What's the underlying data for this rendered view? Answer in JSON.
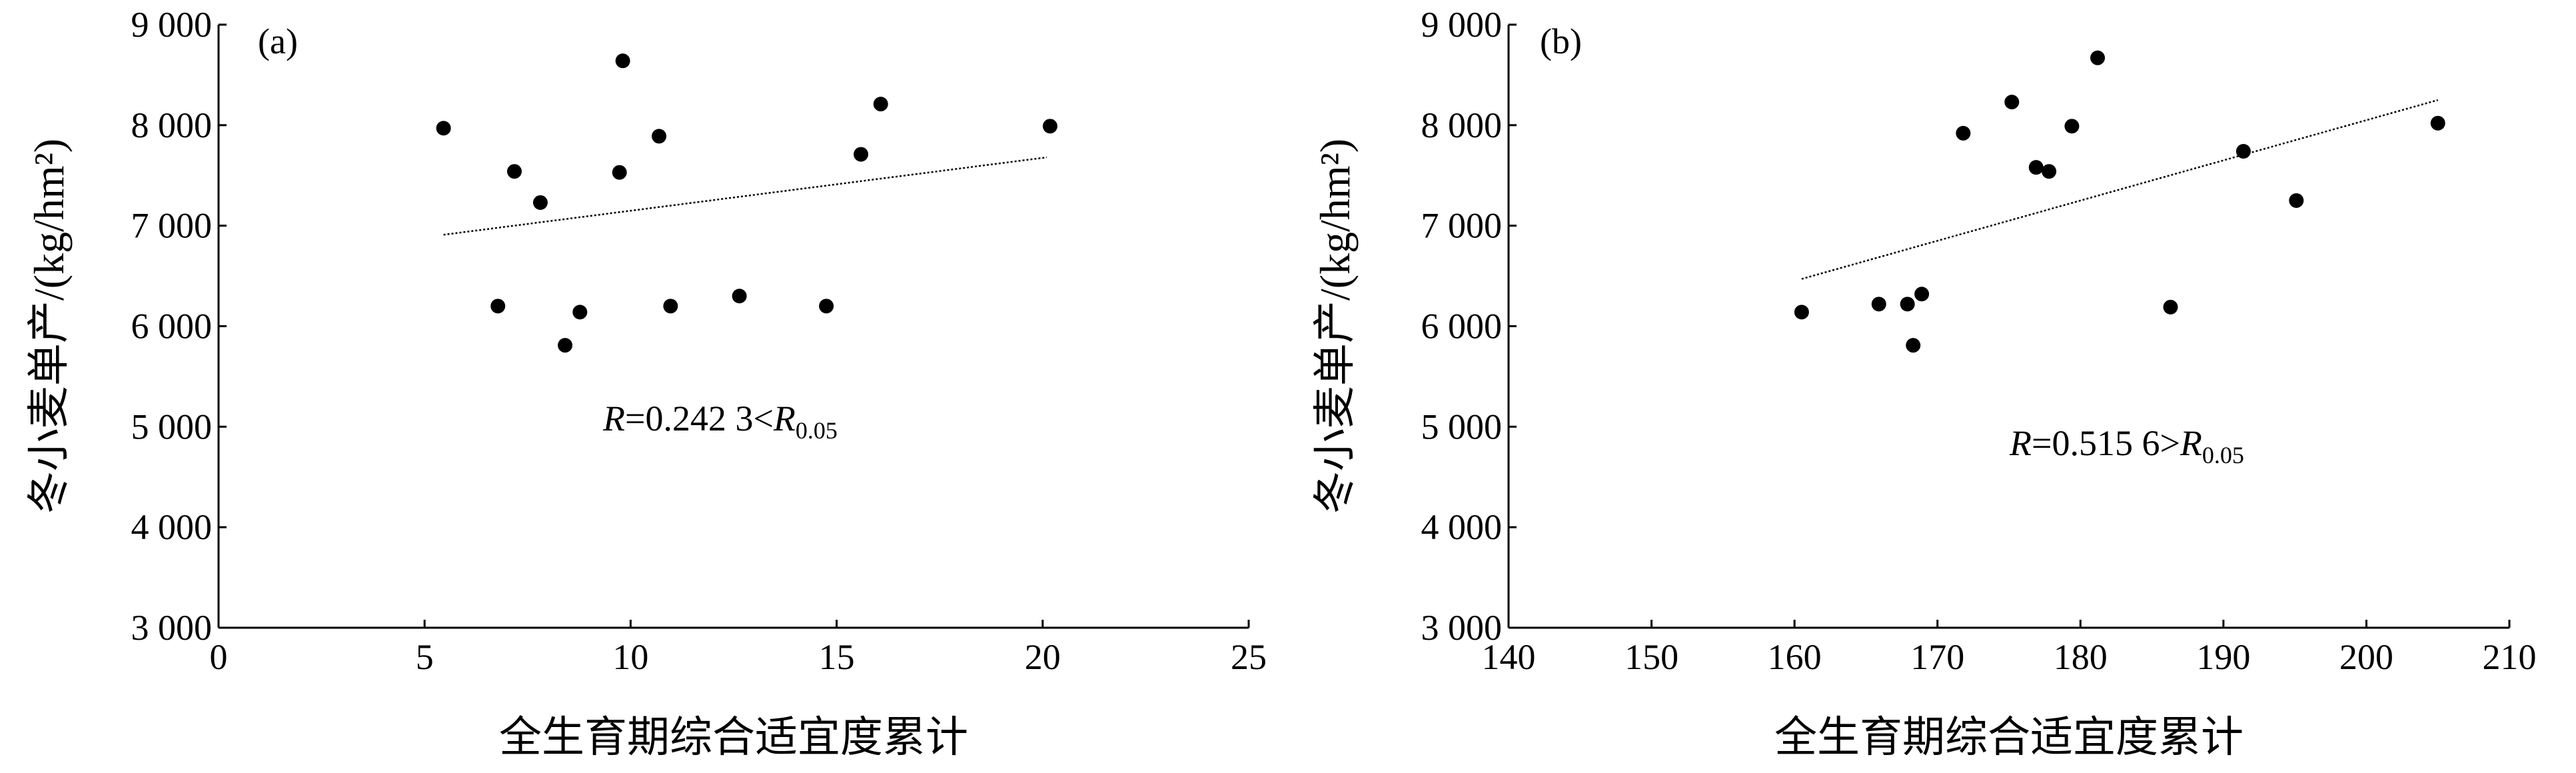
{
  "chart_data": [
    {
      "type": "scatter",
      "panel_label": "(a)",
      "x_label": "全生育期综合适宜度累计",
      "y_label": "冬小麦单产/(kg/hm²)",
      "annotation": [
        "R",
        "=0.242 3<",
        "R",
        "0.05"
      ],
      "x": [
        5.46,
        6.78,
        7.18,
        7.81,
        8.41,
        8.77,
        9.73,
        9.81,
        10.69,
        10.97,
        12.64,
        14.75,
        15.59,
        16.07,
        20.18
      ],
      "values": [
        7970,
        6200,
        7540,
        7230,
        5810,
        6140,
        7530,
        8640,
        7890,
        6200,
        6300,
        6200,
        7710,
        8210,
        7990
      ],
      "color": "#000000",
      "trendline": {
        "x": [
          5.46,
          20.1
        ],
        "y": [
          6910,
          7680
        ]
      },
      "xlim": [
        0,
        25
      ],
      "xticks": [
        0,
        5,
        10,
        15,
        20,
        25
      ],
      "ylim": [
        3000,
        9000
      ],
      "yticks": [
        {
          "value": 3000,
          "label": "3 000"
        },
        {
          "value": 4000,
          "label": "4 000"
        },
        {
          "value": 5000,
          "label": "5 000"
        },
        {
          "value": 6000,
          "label": "6 000"
        },
        {
          "value": 7000,
          "label": "7 000"
        },
        {
          "value": 8000,
          "label": "8 000"
        },
        {
          "value": 9000,
          "label": "9 000"
        }
      ]
    },
    {
      "type": "scatter",
      "panel_label": "(b)",
      "x_label": "全生育期综合适宜度累计",
      "y_label": "冬小麦单产/(kg/hm²)",
      "annotation": [
        "R",
        "=0.515 6>",
        "R",
        "0.05"
      ],
      "x": [
        160.5,
        165.9,
        167.9,
        168.3,
        168.9,
        171.8,
        175.2,
        176.9,
        177.8,
        179.4,
        181.2,
        186.3,
        191.4,
        195.1,
        205.0
      ],
      "values": [
        6140,
        6220,
        6220,
        5810,
        6320,
        7920,
        8230,
        7580,
        7540,
        7990,
        8670,
        6190,
        7740,
        7250,
        8020
      ],
      "color": "#000000",
      "trendline": {
        "x": [
          160.5,
          205.0
        ],
        "y": [
          6470,
          8250
        ]
      },
      "xlim": [
        140,
        210
      ],
      "xticks": [
        140,
        150,
        160,
        170,
        180,
        190,
        200,
        210
      ],
      "ylim": [
        3000,
        9000
      ],
      "yticks": [
        {
          "value": 3000,
          "label": "3 000"
        },
        {
          "value": 4000,
          "label": "4 000"
        },
        {
          "value": 5000,
          "label": "5 000"
        },
        {
          "value": 6000,
          "label": "6 000"
        },
        {
          "value": 7000,
          "label": "7 000"
        },
        {
          "value": 8000,
          "label": "8 000"
        },
        {
          "value": 9000,
          "label": "9 000"
        }
      ]
    }
  ]
}
